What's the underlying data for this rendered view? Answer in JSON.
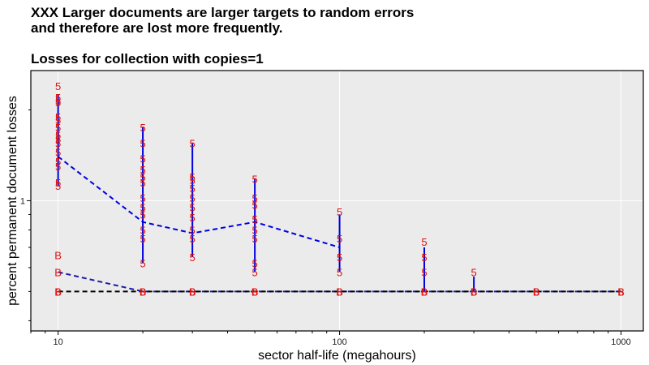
{
  "titles": {
    "line1": "XXX Larger documents are larger targets to random errors",
    "line2": "and therefore are lost more frequently.",
    "line3": "Losses for collection with copies=1"
  },
  "colors": {
    "panel": "#ebebeb",
    "grid": "#ffffff",
    "glyph": "#e01010",
    "series_small": "#000000",
    "series_medium": "#1a1aa8",
    "series_large": "#0000e0",
    "whisker": "#0000e0"
  },
  "chart_data": {
    "type": "scatter",
    "xlabel": "sector half-life (megahours)",
    "ylabel": "percent permanent document losses",
    "x_scale": "log",
    "y_scale": "log",
    "xlim": [
      8,
      1200
    ],
    "ylim": [
      0.37,
      2.7
    ],
    "x_ticks": [
      10,
      100,
      1000
    ],
    "y_ticks": [
      1
    ],
    "grid": true,
    "series": [
      {
        "glyph": "5",
        "points": [
          {
            "x": 10,
            "y": [
              2.4,
              2.2,
              2.15,
              2.12,
              1.9,
              1.85,
              1.75,
              1.65,
              1.6,
              1.55,
              1.45,
              1.35,
              1.3,
              1.15,
              1.12
            ]
          },
          {
            "x": 20,
            "y": [
              1.75,
              1.55,
              1.38,
              1.27,
              1.2,
              1.15,
              1.02,
              0.95,
              0.9,
              0.8,
              0.75,
              0.62
            ]
          },
          {
            "x": 30,
            "y": [
              1.55,
              1.2,
              1.17,
              1.1,
              1.02,
              0.95,
              0.88,
              0.8,
              0.75,
              0.65
            ]
          },
          {
            "x": 50,
            "y": [
              1.18,
              1.02,
              0.97,
              0.87,
              0.8,
              0.75,
              0.62,
              0.58
            ]
          },
          {
            "x": 100,
            "y": [
              0.92,
              0.75,
              0.65,
              0.58
            ]
          },
          {
            "x": 200,
            "y": [
              0.73,
              0.65,
              0.58
            ]
          },
          {
            "x": 300,
            "y": [
              0.58
            ]
          }
        ]
      },
      {
        "glyph": "B",
        "points": [
          {
            "x": 10,
            "y": [
              0.66,
              0.58,
              0.5
            ]
          },
          {
            "x": 20,
            "y": [
              0.5
            ]
          },
          {
            "x": 30,
            "y": [
              0.5
            ]
          },
          {
            "x": 50,
            "y": [
              0.5
            ]
          },
          {
            "x": 100,
            "y": [
              0.5
            ]
          },
          {
            "x": 200,
            "y": [
              0.5
            ]
          },
          {
            "x": 300,
            "y": [
              0.5
            ]
          },
          {
            "x": 500,
            "y": [
              0.5
            ]
          },
          {
            "x": 1000,
            "y": [
              0.5
            ]
          }
        ]
      },
      {
        "glyph": "6",
        "points": [
          {
            "x": 10,
            "y": [
              0.5
            ]
          },
          {
            "x": 20,
            "y": [
              0.5
            ]
          },
          {
            "x": 30,
            "y": [
              0.5
            ]
          },
          {
            "x": 50,
            "y": [
              0.5
            ]
          },
          {
            "x": 100,
            "y": [
              0.5
            ]
          },
          {
            "x": 200,
            "y": [
              0.5
            ]
          },
          {
            "x": 300,
            "y": [
              0.5
            ]
          },
          {
            "x": 500,
            "y": [
              0.5
            ]
          },
          {
            "x": 1000,
            "y": [
              0.5
            ]
          }
        ]
      }
    ],
    "mean_lines": [
      {
        "style": "dashed",
        "color_key": "series_large",
        "points": [
          [
            10,
            1.4
          ],
          [
            20,
            0.85
          ],
          [
            30,
            0.78
          ],
          [
            50,
            0.85
          ],
          [
            100,
            0.7
          ]
        ]
      },
      {
        "style": "dashed",
        "color_key": "series_medium",
        "points": [
          [
            10,
            0.58
          ],
          [
            20,
            0.5
          ],
          [
            30,
            0.5
          ],
          [
            50,
            0.5
          ],
          [
            100,
            0.5
          ],
          [
            200,
            0.5
          ],
          [
            300,
            0.5
          ],
          [
            500,
            0.5
          ],
          [
            1000,
            0.5
          ]
        ]
      },
      {
        "style": "dashed",
        "color_key": "series_small",
        "points": [
          [
            10,
            0.5
          ],
          [
            20,
            0.5
          ],
          [
            30,
            0.5
          ],
          [
            50,
            0.5
          ],
          [
            100,
            0.5
          ],
          [
            200,
            0.5
          ],
          [
            300,
            0.5
          ],
          [
            500,
            0.5
          ],
          [
            1000,
            0.5
          ]
        ]
      }
    ],
    "whiskers": [
      {
        "x": 10,
        "low": 1.12,
        "high": 2.25
      },
      {
        "x": 20,
        "low": 0.62,
        "high": 1.75
      },
      {
        "x": 30,
        "low": 0.65,
        "high": 1.55
      },
      {
        "x": 50,
        "low": 0.58,
        "high": 1.18
      },
      {
        "x": 100,
        "low": 0.58,
        "high": 0.9
      },
      {
        "x": 200,
        "low": 0.5,
        "high": 0.7
      },
      {
        "x": 300,
        "low": 0.5,
        "high": 0.56
      }
    ]
  }
}
